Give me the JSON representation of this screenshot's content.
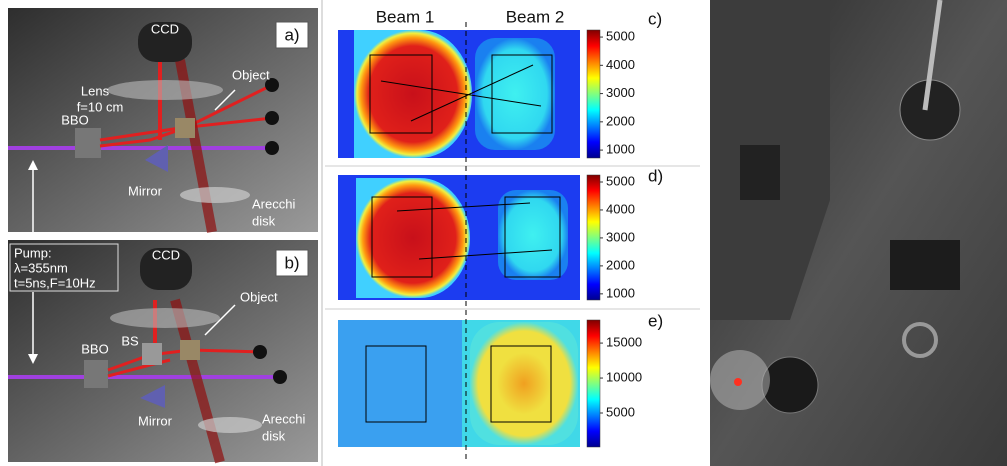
{
  "setup_a": {
    "label": "a)",
    "ccd": "CCD",
    "lens": [
      "Lens",
      "f=10 cm"
    ],
    "object": "Object",
    "bbo": "BBO",
    "mirror": "Mirror",
    "disk": [
      "Arecchi",
      "disk"
    ]
  },
  "setup_b": {
    "label": "b)",
    "ccd": "CCD",
    "pump": [
      "Pump:",
      "λ=355nm",
      "t=5ns,F=10Hz"
    ],
    "object": "Object",
    "bbo": "BBO",
    "bs": "BS",
    "mirror": "Mirror",
    "disk": [
      "Arecchi",
      "disk"
    ]
  },
  "beams": [
    "Beam 1",
    "Beam 2"
  ],
  "maps": [
    {
      "label": "c)",
      "range": [
        720,
        5250
      ],
      "ticks": [
        5000,
        4000,
        3000,
        2000,
        1000
      ]
    },
    {
      "label": "d)",
      "range": [
        780,
        5250
      ],
      "ticks": [
        5000,
        4000,
        3000,
        2000,
        1000
      ]
    },
    {
      "label": "e)",
      "range": [
        140,
        18300
      ],
      "ticks": [
        15000,
        10000,
        5000
      ]
    }
  ]
}
